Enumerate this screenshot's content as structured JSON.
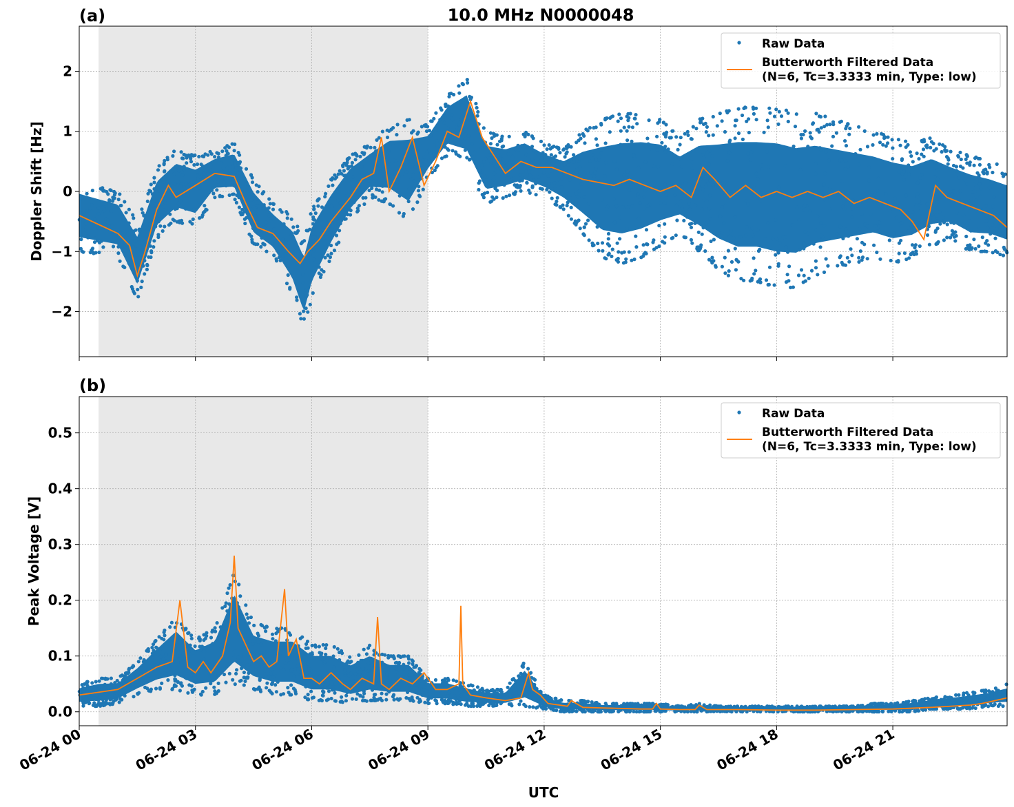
{
  "figure": {
    "title": "10.0 MHz N0000048",
    "xlabel": "UTC"
  },
  "colors": {
    "raw": "#1f77b4",
    "filtered": "#ff7f0e",
    "shade": "#e8e8e8",
    "grid": "#b0b0b0"
  },
  "chart_data": [
    {
      "type": "scatter",
      "panel_label": "(a)",
      "ylabel": "Doppler Shift [Hz]",
      "xlim_hours": [
        0,
        23.95
      ],
      "ylim": [
        -2.75,
        2.75
      ],
      "y_ticks": [
        -2,
        -1,
        0,
        1,
        2
      ],
      "y_tick_labels": [
        "−2",
        "−1",
        "0",
        "1",
        "2"
      ],
      "x_ticks_hours": [
        0,
        3,
        6,
        9,
        12,
        15,
        18,
        21
      ],
      "x_tick_labels": [],
      "grid": true,
      "shaded_interval_hours": [
        0.5,
        9.0
      ],
      "legend": {
        "placement": "top-right",
        "entries": [
          "Raw Data",
          "Butterworth Filtered Data",
          "(N=6, Tc=3.3333 min, Type: low)"
        ]
      },
      "series": [
        {
          "name": "Raw Data",
          "style": "dots",
          "x_hours": [
            0,
            0.5,
            1,
            1.5,
            2,
            2.5,
            3,
            3.5,
            4,
            4.5,
            5,
            5.5,
            5.8,
            6,
            6.5,
            7,
            7.5,
            8,
            8.5,
            9,
            9.5,
            10,
            10.5,
            11,
            11.5,
            12,
            12.5,
            13,
            13.5,
            14,
            14.5,
            15,
            15.5,
            16,
            16.5,
            17,
            17.5,
            18,
            18.5,
            19,
            19.5,
            20,
            20.5,
            21,
            21.5,
            22,
            22.5,
            23,
            23.5,
            23.95
          ],
          "low": [
            -1.0,
            -1.05,
            -1.1,
            -1.8,
            -0.8,
            -0.5,
            -0.6,
            -0.1,
            -0.1,
            -0.9,
            -1.1,
            -1.7,
            -2.3,
            -1.8,
            -1.1,
            -0.5,
            -0.1,
            -0.2,
            -0.5,
            0.2,
            0.6,
            0.4,
            -0.2,
            -0.1,
            0.0,
            -0.1,
            -0.3,
            -0.7,
            -1.1,
            -1.2,
            -1.1,
            -0.9,
            -0.7,
            -1.0,
            -1.3,
            -1.5,
            -1.5,
            -1.6,
            -1.6,
            -1.4,
            -1.3,
            -1.2,
            -1.1,
            -1.2,
            -1.1,
            -0.9,
            -0.8,
            -1.0,
            -1.0,
            -1.1
          ],
          "high": [
            0.2,
            0.1,
            0.0,
            -0.5,
            0.4,
            0.7,
            0.6,
            0.7,
            0.8,
            0.2,
            -0.2,
            -0.4,
            -0.8,
            -0.3,
            0.2,
            0.6,
            0.8,
            1.1,
            1.2,
            1.1,
            1.6,
            1.9,
            1.0,
            0.9,
            1.0,
            0.8,
            0.7,
            1.0,
            1.2,
            1.3,
            1.3,
            1.2,
            0.9,
            1.2,
            1.3,
            1.4,
            1.4,
            1.4,
            1.3,
            1.3,
            1.2,
            1.1,
            1.0,
            0.9,
            0.8,
            0.9,
            0.7,
            0.6,
            0.5,
            0.4
          ]
        },
        {
          "name": "Butterworth Filtered Data",
          "style": "line",
          "x_hours": [
            0,
            0.5,
            1,
            1.3,
            1.5,
            1.7,
            2,
            2.3,
            2.5,
            3,
            3.5,
            4,
            4.3,
            4.6,
            5,
            5.4,
            5.7,
            5.9,
            6.2,
            6.5,
            7,
            7.3,
            7.6,
            7.8,
            8,
            8.3,
            8.6,
            8.9,
            9.2,
            9.5,
            9.8,
            10.1,
            10.4,
            10.7,
            11,
            11.4,
            11.8,
            12.2,
            12.6,
            13,
            13.4,
            13.8,
            14.2,
            14.6,
            15,
            15.4,
            15.8,
            16.1,
            16.4,
            16.8,
            17.2,
            17.6,
            18,
            18.4,
            18.8,
            19.2,
            19.6,
            20,
            20.4,
            20.8,
            21.2,
            21.5,
            21.8,
            22.1,
            22.4,
            22.8,
            23.2,
            23.6,
            23.95
          ],
          "values": [
            -0.4,
            -0.55,
            -0.7,
            -0.9,
            -1.4,
            -1.0,
            -0.3,
            0.1,
            -0.1,
            0.1,
            0.3,
            0.25,
            -0.2,
            -0.6,
            -0.7,
            -1.0,
            -1.2,
            -1.0,
            -0.8,
            -0.5,
            -0.1,
            0.2,
            0.3,
            0.9,
            0.0,
            0.4,
            0.9,
            0.1,
            0.5,
            1.0,
            0.9,
            1.5,
            0.9,
            0.6,
            0.3,
            0.5,
            0.4,
            0.4,
            0.3,
            0.2,
            0.15,
            0.1,
            0.2,
            0.1,
            0.0,
            0.1,
            -0.1,
            0.4,
            0.2,
            -0.1,
            0.1,
            -0.1,
            0.0,
            -0.1,
            0.0,
            -0.1,
            0.0,
            -0.2,
            -0.1,
            -0.2,
            -0.3,
            -0.5,
            -0.8,
            0.1,
            -0.1,
            -0.2,
            -0.3,
            -0.4,
            -0.6
          ]
        }
      ]
    },
    {
      "type": "scatter",
      "panel_label": "(b)",
      "ylabel": "Peak Voltage [V]",
      "xlim_hours": [
        0,
        23.95
      ],
      "ylim": [
        -0.025,
        0.565
      ],
      "y_ticks": [
        0.0,
        0.1,
        0.2,
        0.3,
        0.4,
        0.5
      ],
      "y_tick_labels": [
        "0.0",
        "0.1",
        "0.2",
        "0.3",
        "0.4",
        "0.5"
      ],
      "x_ticks_hours": [
        0,
        3,
        6,
        9,
        12,
        15,
        18,
        21
      ],
      "x_tick_labels": [
        "06-24 00",
        "06-24 03",
        "06-24 06",
        "06-24 09",
        "06-24 12",
        "06-24 15",
        "06-24 18",
        "06-24 21"
      ],
      "grid": true,
      "shaded_interval_hours": [
        0.5,
        9.0
      ],
      "legend": {
        "placement": "top-right",
        "entries": [
          "Raw Data",
          "Butterworth Filtered Data",
          "(N=6, Tc=3.3333 min, Type: low)"
        ]
      },
      "series": [
        {
          "name": "Raw Data",
          "style": "dots",
          "x_hours": [
            0,
            0.5,
            1,
            1.5,
            2,
            2.5,
            3,
            3.5,
            4,
            4.5,
            5,
            5.5,
            6,
            6.5,
            7,
            7.5,
            8,
            8.5,
            9,
            9.5,
            10,
            10.5,
            11,
            11.5,
            12,
            12.5,
            13,
            13.5,
            14,
            14.5,
            15,
            15.5,
            16,
            16.5,
            17,
            17.5,
            18,
            18.5,
            19,
            19.5,
            20,
            20.5,
            21,
            21.5,
            22,
            22.5,
            23,
            23.5,
            23.95
          ],
          "low": [
            0.01,
            0.01,
            0.015,
            0.03,
            0.04,
            0.04,
            0.03,
            0.03,
            0.05,
            0.04,
            0.03,
            0.03,
            0.02,
            0.02,
            0.015,
            0.02,
            0.02,
            0.02,
            0.015,
            0.015,
            0.01,
            0.01,
            0.01,
            0.01,
            0.005,
            0.0,
            0.0,
            0.0,
            0.0,
            0.0,
            0.0,
            0.0,
            0.0,
            0.0,
            0.0,
            0.0,
            0.0,
            0.0,
            0.0,
            0.0,
            0.0,
            0.0,
            0.0,
            0.0,
            0.005,
            0.005,
            0.005,
            0.01,
            0.01
          ],
          "high": [
            0.05,
            0.06,
            0.06,
            0.09,
            0.13,
            0.17,
            0.13,
            0.15,
            0.25,
            0.16,
            0.15,
            0.15,
            0.12,
            0.12,
            0.1,
            0.12,
            0.1,
            0.1,
            0.06,
            0.06,
            0.05,
            0.04,
            0.04,
            0.09,
            0.03,
            0.02,
            0.02,
            0.015,
            0.015,
            0.015,
            0.015,
            0.01,
            0.015,
            0.01,
            0.01,
            0.01,
            0.01,
            0.01,
            0.01,
            0.01,
            0.01,
            0.015,
            0.015,
            0.02,
            0.025,
            0.03,
            0.035,
            0.04,
            0.05
          ]
        },
        {
          "name": "Butterworth Filtered Data",
          "style": "line",
          "x_hours": [
            0,
            0.5,
            1,
            1.5,
            2,
            2.4,
            2.6,
            2.8,
            3.0,
            3.2,
            3.4,
            3.7,
            3.9,
            4.0,
            4.1,
            4.3,
            4.5,
            4.7,
            4.9,
            5.1,
            5.3,
            5.4,
            5.6,
            5.8,
            6.0,
            6.2,
            6.5,
            6.8,
            7.0,
            7.3,
            7.6,
            7.7,
            7.8,
            8.0,
            8.3,
            8.6,
            8.9,
            9.2,
            9.5,
            9.8,
            9.85,
            9.9,
            10.1,
            10.5,
            11.0,
            11.4,
            11.6,
            11.7,
            11.9,
            12.1,
            12.6,
            12.7,
            13.0,
            13.5,
            14.0,
            14.5,
            14.8,
            14.9,
            15.0,
            15.5,
            15.9,
            16.0,
            16.2,
            17.0,
            18.0,
            19.0,
            20.0,
            21.0,
            22.0,
            22.5,
            23.0,
            23.3,
            23.5,
            23.95
          ],
          "values": [
            0.03,
            0.035,
            0.04,
            0.06,
            0.08,
            0.09,
            0.2,
            0.08,
            0.07,
            0.09,
            0.07,
            0.1,
            0.16,
            0.28,
            0.15,
            0.12,
            0.09,
            0.1,
            0.08,
            0.09,
            0.22,
            0.1,
            0.13,
            0.06,
            0.06,
            0.05,
            0.07,
            0.05,
            0.04,
            0.06,
            0.05,
            0.17,
            0.05,
            0.04,
            0.06,
            0.05,
            0.07,
            0.04,
            0.04,
            0.05,
            0.19,
            0.05,
            0.03,
            0.025,
            0.02,
            0.025,
            0.07,
            0.04,
            0.03,
            0.015,
            0.01,
            0.02,
            0.008,
            0.007,
            0.006,
            0.005,
            0.005,
            0.015,
            0.005,
            0.004,
            0.004,
            0.012,
            0.004,
            0.004,
            0.003,
            0.003,
            0.004,
            0.005,
            0.008,
            0.01,
            0.012,
            0.015,
            0.018,
            0.025
          ]
        }
      ]
    }
  ]
}
